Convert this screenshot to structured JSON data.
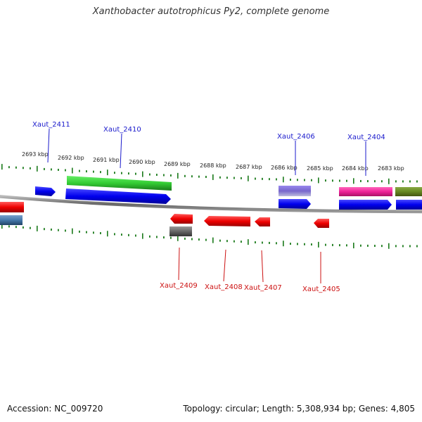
{
  "title": "Xanthobacter autotrophicus Py2, complete genome",
  "footer": {
    "accession": "Accession: NC_009720",
    "summary": "Topology: circular; Length: 5,308,934 bp; Genes: 4,805"
  },
  "scale_labels": [
    "2693 kbp",
    "2692 kbp",
    "2691 kbp",
    "2690 kbp",
    "2689 kbp",
    "2688 kbp",
    "2687 kbp",
    "2686 kbp",
    "2685 kbp",
    "2684 kbp",
    "2683 kbp"
  ],
  "top_labels": [
    "Xaut_2411",
    "Xaut_2410",
    "Xaut_2406",
    "Xaut_2404"
  ],
  "bottom_labels": [
    "Xaut_2409",
    "Xaut_2408",
    "Xaut_2407",
    "Xaut_2405"
  ],
  "colors": {
    "forward_gene": "#1010e8",
    "reverse_gene": "#ee1111",
    "top_label": "#1a1acc",
    "bottom_label": "#cc1111",
    "backbone": "#888888",
    "tick": "#1a7a1a",
    "cog_green": "#33cc33",
    "cog_purple": "#7766cc",
    "cog_pink": "#ee2299",
    "cog_olive": "#668822",
    "cog_steel": "#4477aa",
    "cog_gray": "#666666"
  }
}
